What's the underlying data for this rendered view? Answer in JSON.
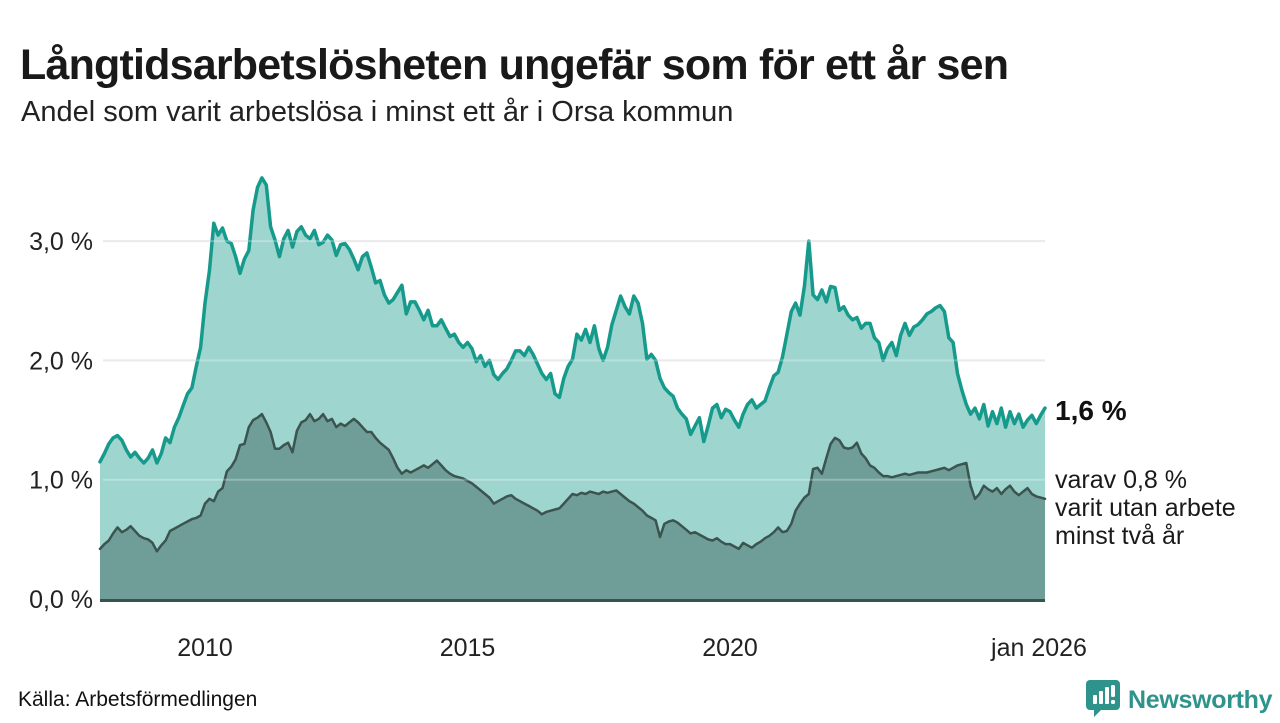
{
  "header": {
    "title": "Långtidsarbetslösheten ungefär som för ett år sen",
    "subtitle": "Andel som varit arbetslösa i minst ett år i Orsa kommun"
  },
  "chart_data": {
    "type": "area",
    "unit": "%",
    "frequency": "monthly",
    "x_start": "2008-01",
    "x_end": "2026-01",
    "ylim": [
      0,
      3.6
    ],
    "grid": "horizontal",
    "legend_position": "none",
    "y_ticks": [
      {
        "value": 0,
        "label": "0,0 %"
      },
      {
        "value": 1,
        "label": "1,0 %"
      },
      {
        "value": 2,
        "label": "2,0 %"
      },
      {
        "value": 3,
        "label": "3,0 %"
      }
    ],
    "x_ticks": [
      {
        "month_index": 24,
        "label": "2010"
      },
      {
        "month_index": 84,
        "label": "2015"
      },
      {
        "month_index": 144,
        "label": "2020"
      },
      {
        "month_index": 216,
        "label": "jan 2026"
      }
    ],
    "series": [
      {
        "name": "Arbetslösa minst ett år",
        "line_color": "#169a8c",
        "fill_color": "#9fd5cf",
        "line_width": 3.5,
        "latest_value": 1.6,
        "values": [
          1.15,
          1.22,
          1.3,
          1.35,
          1.37,
          1.33,
          1.25,
          1.19,
          1.23,
          1.18,
          1.14,
          1.18,
          1.25,
          1.14,
          1.22,
          1.35,
          1.31,
          1.44,
          1.52,
          1.62,
          1.72,
          1.77,
          1.95,
          2.11,
          2.48,
          2.75,
          3.15,
          3.05,
          3.11,
          3.0,
          2.98,
          2.87,
          2.73,
          2.85,
          2.92,
          3.26,
          3.45,
          3.53,
          3.47,
          3.12,
          3.01,
          2.87,
          3.02,
          3.09,
          2.95,
          3.08,
          3.12,
          3.05,
          3.02,
          3.09,
          2.97,
          2.99,
          3.05,
          3.01,
          2.88,
          2.97,
          2.98,
          2.93,
          2.85,
          2.76,
          2.87,
          2.9,
          2.78,
          2.65,
          2.67,
          2.55,
          2.48,
          2.51,
          2.57,
          2.63,
          2.39,
          2.49,
          2.49,
          2.42,
          2.34,
          2.42,
          2.29,
          2.29,
          2.34,
          2.27,
          2.2,
          2.22,
          2.15,
          2.11,
          2.15,
          2.1,
          1.99,
          2.04,
          1.95,
          2.0,
          1.88,
          1.84,
          1.89,
          1.93,
          2.0,
          2.08,
          2.08,
          2.04,
          2.11,
          2.05,
          1.97,
          1.89,
          1.84,
          1.89,
          1.72,
          1.69,
          1.85,
          1.95,
          2.01,
          2.22,
          2.17,
          2.26,
          2.15,
          2.29,
          2.1,
          2.0,
          2.11,
          2.3,
          2.42,
          2.54,
          2.45,
          2.39,
          2.54,
          2.48,
          2.31,
          2.01,
          2.05,
          2.0,
          1.85,
          1.77,
          1.73,
          1.7,
          1.6,
          1.55,
          1.51,
          1.38,
          1.45,
          1.52,
          1.32,
          1.45,
          1.6,
          1.63,
          1.52,
          1.59,
          1.57,
          1.5,
          1.44,
          1.55,
          1.63,
          1.67,
          1.6,
          1.63,
          1.66,
          1.77,
          1.87,
          1.9,
          2.03,
          2.22,
          2.41,
          2.48,
          2.38,
          2.62,
          3.0,
          2.55,
          2.51,
          2.59,
          2.49,
          2.62,
          2.61,
          2.42,
          2.45,
          2.38,
          2.34,
          2.36,
          2.27,
          2.31,
          2.31,
          2.19,
          2.15,
          2.0,
          2.1,
          2.15,
          2.04,
          2.21,
          2.31,
          2.21,
          2.28,
          2.3,
          2.34,
          2.39,
          2.41,
          2.44,
          2.46,
          2.41,
          2.19,
          2.15,
          1.89,
          1.75,
          1.63,
          1.55,
          1.6,
          1.51,
          1.63,
          1.45,
          1.57,
          1.47,
          1.6,
          1.44,
          1.57,
          1.47,
          1.55,
          1.44,
          1.5,
          1.54,
          1.47,
          1.54,
          1.6
        ]
      },
      {
        "name": "Arbetslösa minst två år",
        "line_color": "#3b544f",
        "fill_color": "#6f9e98",
        "line_width": 2.5,
        "latest_value": 0.8,
        "values": [
          0.42,
          0.46,
          0.49,
          0.55,
          0.6,
          0.56,
          0.58,
          0.61,
          0.57,
          0.53,
          0.51,
          0.5,
          0.47,
          0.4,
          0.45,
          0.49,
          0.57,
          0.59,
          0.61,
          0.63,
          0.65,
          0.67,
          0.68,
          0.7,
          0.8,
          0.84,
          0.82,
          0.9,
          0.93,
          1.07,
          1.11,
          1.17,
          1.29,
          1.3,
          1.44,
          1.5,
          1.52,
          1.55,
          1.48,
          1.4,
          1.26,
          1.26,
          1.29,
          1.31,
          1.23,
          1.41,
          1.48,
          1.5,
          1.55,
          1.49,
          1.51,
          1.55,
          1.49,
          1.51,
          1.44,
          1.47,
          1.45,
          1.48,
          1.51,
          1.48,
          1.44,
          1.4,
          1.4,
          1.35,
          1.31,
          1.28,
          1.25,
          1.18,
          1.1,
          1.05,
          1.08,
          1.06,
          1.08,
          1.1,
          1.12,
          1.1,
          1.13,
          1.16,
          1.12,
          1.08,
          1.05,
          1.03,
          1.02,
          1.01,
          0.99,
          0.97,
          0.94,
          0.91,
          0.88,
          0.85,
          0.8,
          0.82,
          0.84,
          0.86,
          0.87,
          0.84,
          0.82,
          0.8,
          0.78,
          0.76,
          0.74,
          0.71,
          0.73,
          0.74,
          0.75,
          0.76,
          0.8,
          0.84,
          0.88,
          0.87,
          0.89,
          0.88,
          0.9,
          0.89,
          0.88,
          0.9,
          0.89,
          0.9,
          0.91,
          0.88,
          0.85,
          0.82,
          0.8,
          0.77,
          0.74,
          0.7,
          0.68,
          0.66,
          0.52,
          0.63,
          0.65,
          0.66,
          0.64,
          0.61,
          0.58,
          0.55,
          0.56,
          0.54,
          0.52,
          0.5,
          0.49,
          0.51,
          0.48,
          0.46,
          0.46,
          0.44,
          0.42,
          0.47,
          0.45,
          0.43,
          0.46,
          0.48,
          0.51,
          0.53,
          0.56,
          0.6,
          0.56,
          0.57,
          0.63,
          0.74,
          0.8,
          0.85,
          0.88,
          1.09,
          1.1,
          1.05,
          1.18,
          1.3,
          1.35,
          1.33,
          1.27,
          1.26,
          1.27,
          1.31,
          1.22,
          1.18,
          1.12,
          1.1,
          1.06,
          1.03,
          1.03,
          1.02,
          1.03,
          1.04,
          1.05,
          1.04,
          1.05,
          1.06,
          1.06,
          1.06,
          1.07,
          1.08,
          1.09,
          1.1,
          1.08,
          1.1,
          1.12,
          1.13,
          1.14,
          0.95,
          0.84,
          0.88,
          0.95,
          0.92,
          0.9,
          0.93,
          0.88,
          0.92,
          0.95,
          0.9,
          0.87,
          0.9,
          0.93,
          0.88,
          0.86,
          0.85,
          0.84
        ]
      }
    ],
    "annotations": {
      "latest_total_label": "1,6 %",
      "latest_detail_lines": [
        "varav 0,8 %",
        "varit utan arbete",
        "minst två år"
      ]
    }
  },
  "footer": {
    "source": "Källa: Arbetsförmedlingen",
    "brand": "Newsworthy"
  },
  "colors": {
    "accent_teal": "#169a8c",
    "light_fill": "#9fd5cf",
    "dark_fill": "#6f9e98",
    "dark_line": "#3b544f",
    "grid_line": "#e2e2e6",
    "baseline": "#3a524c",
    "brand_teal": "#2e948b"
  }
}
